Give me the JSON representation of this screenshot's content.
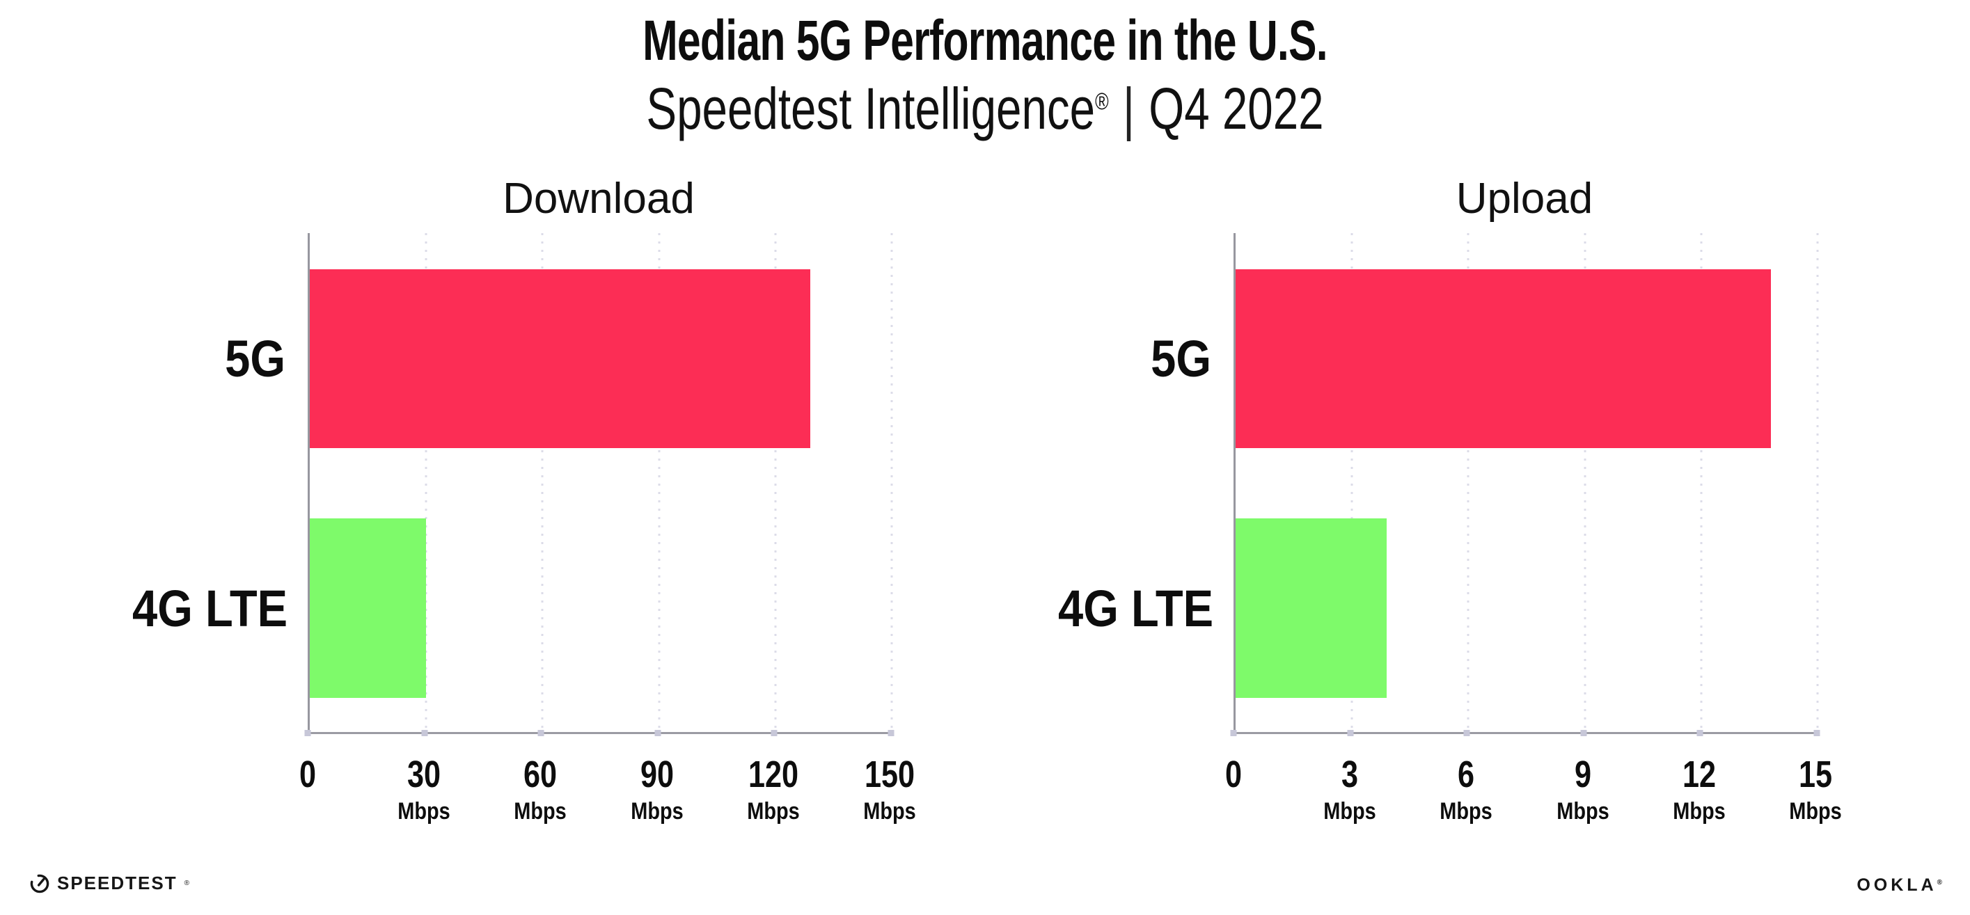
{
  "header": {
    "title": "Median 5G Performance in the U.S.",
    "subtitle_product": "Speedtest Intelligence",
    "subtitle_reg_mark": "®",
    "subtitle_separator": "|",
    "subtitle_period": "Q4 2022"
  },
  "chart_data": {
    "type": "bar",
    "orientation": "horizontal",
    "grid": "dotted-vertical",
    "legend": "none",
    "categories": [
      "5G",
      "4G LTE"
    ],
    "colors": [
      "#FC2D55",
      "#7EFA6A"
    ],
    "unit": "Mbps",
    "charts": [
      {
        "title": "Download",
        "xlim": [
          0,
          150
        ],
        "ticks": [
          "0",
          "30",
          "60",
          "90",
          "120",
          "150"
        ],
        "values_mbps": [
          129,
          30
        ]
      },
      {
        "title": "Upload",
        "xlim": [
          0,
          15
        ],
        "ticks": [
          "0",
          "3",
          "6",
          "9",
          "12",
          "15"
        ],
        "values_mbps": [
          13.8,
          3.9
        ]
      }
    ]
  },
  "footer": {
    "speedtest_wordmark": "SPEEDTEST",
    "speedtest_reg_mark": "®",
    "ookla_wordmark": "OOKLA",
    "ookla_reg_mark": "®"
  }
}
